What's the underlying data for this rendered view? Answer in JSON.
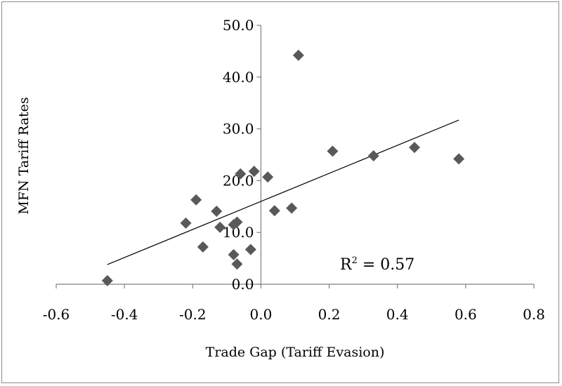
{
  "chart_data": {
    "type": "scatter",
    "xlabel": "Trade Gap (Tariff Evasion)",
    "ylabel": "MFN  Tariff Rates",
    "xlim": [
      -0.6,
      0.8
    ],
    "ylim": [
      0,
      50
    ],
    "x_ticks": [
      "-0.6",
      "-0.4",
      "-0.2",
      "0.0",
      "0.2",
      "0.4",
      "0.6",
      "0.8"
    ],
    "y_ticks": [
      "0.0",
      "10.0",
      "20.0",
      "30.0",
      "40.0",
      "50.0"
    ],
    "x_tick_values": [
      -0.6,
      -0.4,
      -0.2,
      0.0,
      0.2,
      0.4,
      0.6,
      0.8
    ],
    "y_tick_values": [
      0,
      10,
      20,
      30,
      40,
      50
    ],
    "grid": false,
    "marker": "diamond",
    "marker_color": "#595959",
    "points": [
      {
        "x": -0.45,
        "y": 0.7
      },
      {
        "x": -0.22,
        "y": 11.8
      },
      {
        "x": -0.19,
        "y": 16.3
      },
      {
        "x": -0.17,
        "y": 7.2
      },
      {
        "x": -0.13,
        "y": 14.1
      },
      {
        "x": -0.12,
        "y": 11.0
      },
      {
        "x": -0.08,
        "y": 11.5
      },
      {
        "x": -0.08,
        "y": 5.7
      },
      {
        "x": -0.07,
        "y": 3.9
      },
      {
        "x": -0.07,
        "y": 12.0
      },
      {
        "x": -0.06,
        "y": 21.3
      },
      {
        "x": -0.03,
        "y": 6.7
      },
      {
        "x": -0.02,
        "y": 21.8
      },
      {
        "x": 0.02,
        "y": 20.7
      },
      {
        "x": 0.04,
        "y": 14.2
      },
      {
        "x": 0.09,
        "y": 14.7
      },
      {
        "x": 0.11,
        "y": 44.2
      },
      {
        "x": 0.21,
        "y": 25.7
      },
      {
        "x": 0.33,
        "y": 24.8
      },
      {
        "x": 0.45,
        "y": 26.4
      },
      {
        "x": 0.58,
        "y": 24.2
      }
    ],
    "trendline": {
      "x_start": -0.45,
      "y_start": 3.8,
      "x_end": 0.58,
      "y_end": 31.7,
      "color": "#000000"
    },
    "annotation": {
      "text_main": "R",
      "text_sup": "2",
      "text_rest": " = 0.57"
    }
  }
}
